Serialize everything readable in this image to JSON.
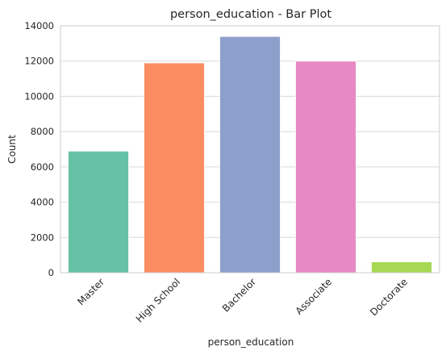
{
  "chart_data": {
    "type": "bar",
    "title": "person_education - Bar Plot",
    "xlabel": "person_education",
    "ylabel": "Count",
    "categories": [
      "Master",
      "High School",
      "Bachelor",
      "Associate",
      "Doctorate"
    ],
    "values": [
      6900,
      11900,
      13400,
      12000,
      620
    ],
    "colors": [
      "#66c2a5",
      "#fc8d62",
      "#8da0cb",
      "#e78ac3",
      "#a6d854"
    ],
    "ylim": [
      0,
      14000
    ],
    "yticks": [
      "0",
      "2000",
      "4000",
      "6000",
      "8000",
      "10000",
      "12000",
      "14000"
    ],
    "grid": "horizontal",
    "xtick_rotation": "45 degrees"
  }
}
